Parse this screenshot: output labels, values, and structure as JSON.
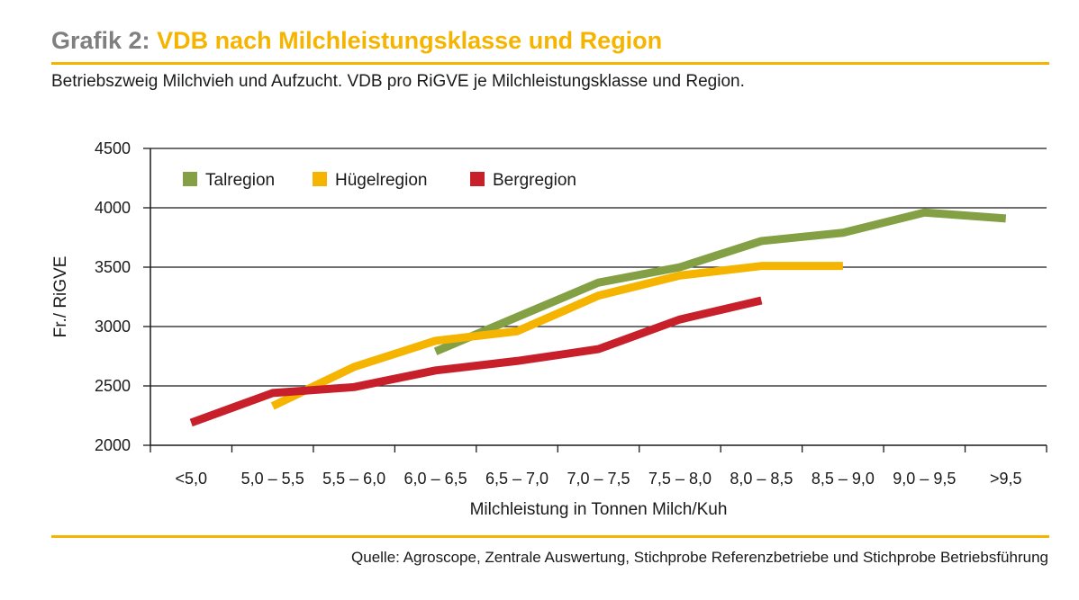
{
  "header": {
    "title_prefix": "Grafik 2:",
    "title_main": "VDB nach Milchleistungsklasse und Region",
    "subtitle": "Betriebszweig Milchvieh und Aufzucht. VDB pro RiGVE je Milchleistungsklasse und Region."
  },
  "source": "Quelle: Agroscope, Zentrale Auswertung, Stichprobe Referenzbetriebe und Stichprobe Betriebsführung",
  "colors": {
    "accent": "#f5b400",
    "title_prefix": "#7f7f7f",
    "talregion": "#84a044",
    "huegelregion": "#f5b400",
    "bergregion": "#c8202a"
  },
  "chart_data": {
    "type": "line",
    "title": "VDB nach Milchleistungsklasse und Region",
    "xlabel": "Milchleistung in Tonnen Milch/Kuh",
    "ylabel": "Fr./ RiGVE",
    "ylim": [
      2000,
      4500
    ],
    "yticks": [
      "2000",
      "2500",
      "3000",
      "3500",
      "4000",
      "4500"
    ],
    "grid": "horizontal",
    "legend_position": "top-left",
    "categories": [
      "<5,0",
      "5,0 – 5,5",
      "5,5 – 6,0",
      "6,0 – 6,5",
      "6,5 – 7,0",
      "7,0 – 7,5",
      "7,5 – 8,0",
      "8,0 – 8,5",
      "8,5 – 9,0",
      "9,0 – 9,5",
      ">9,5"
    ],
    "series": [
      {
        "name": "Talregion",
        "color": "#84a044",
        "values": [
          null,
          null,
          null,
          2790,
          3080,
          3370,
          3500,
          3720,
          3790,
          3960,
          3910
        ]
      },
      {
        "name": "Hügelregion",
        "color": "#f5b400",
        "values": [
          null,
          2330,
          2660,
          2880,
          2960,
          3260,
          3430,
          3510,
          3510,
          null,
          null
        ]
      },
      {
        "name": "Bergregion",
        "color": "#c8202a",
        "values": [
          2190,
          2440,
          2490,
          2630,
          2710,
          2810,
          3060,
          3220,
          null,
          null,
          null
        ]
      }
    ]
  }
}
